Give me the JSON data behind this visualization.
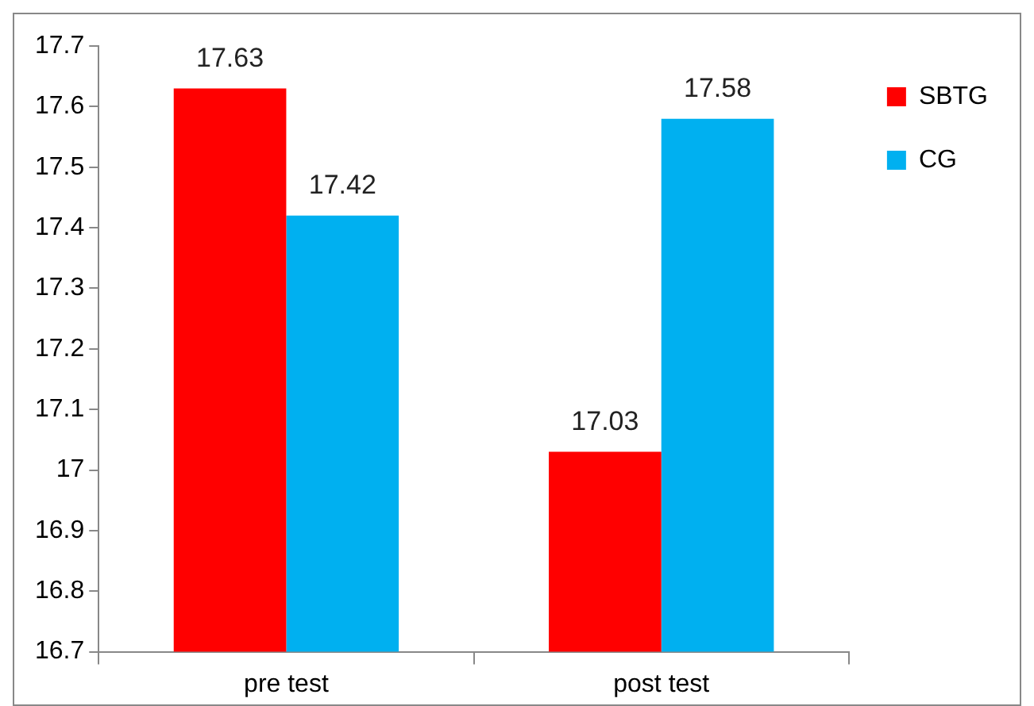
{
  "chart_data": {
    "type": "bar",
    "categories": [
      "pre test",
      "post test"
    ],
    "series": [
      {
        "name": "SBTG",
        "color": "#ff0000",
        "values": [
          17.63,
          17.03
        ]
      },
      {
        "name": "CG",
        "color": "#00b0f0",
        "values": [
          17.42,
          17.58
        ]
      }
    ],
    "ylim": [
      16.7,
      17.7
    ],
    "yticks": [
      16.7,
      16.8,
      16.9,
      17,
      17.1,
      17.2,
      17.3,
      17.4,
      17.5,
      17.6,
      17.7
    ],
    "grid": false,
    "legend": "top right",
    "data_labels": true
  }
}
